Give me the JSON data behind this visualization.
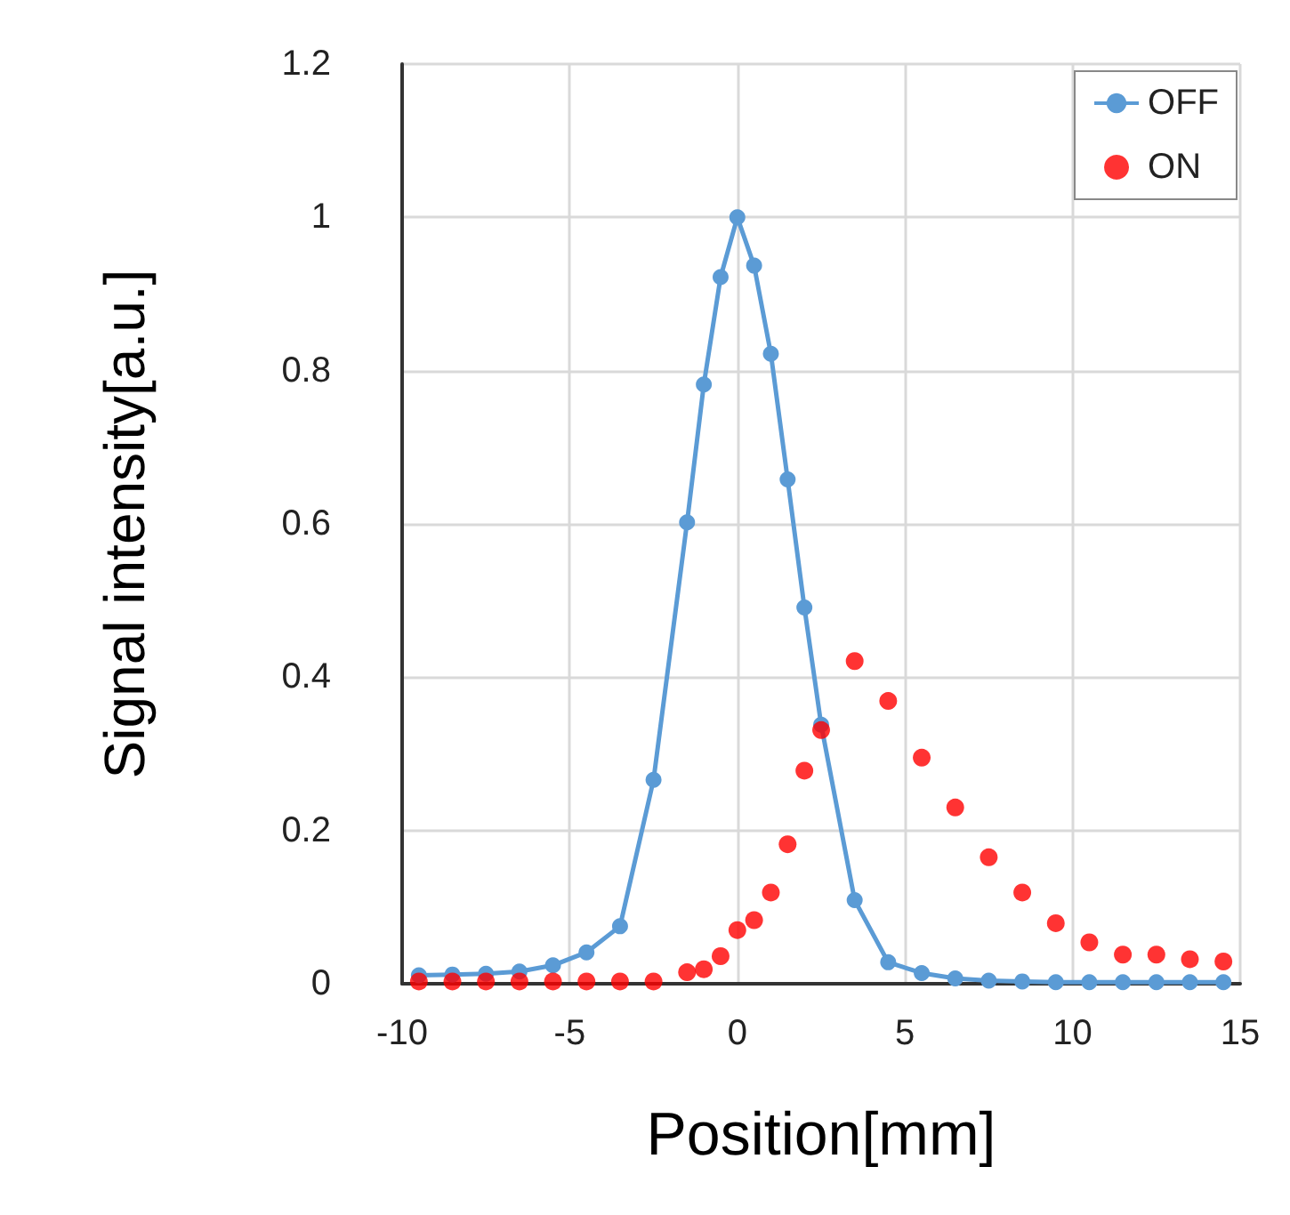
{
  "chart_data": {
    "type": "line",
    "xlabel": "Position[mm]",
    "ylabel": "Signal intensity[a.u.]",
    "x": [
      -9.5,
      -8.5,
      -7.5,
      -6.5,
      -5.5,
      -4.5,
      -3.5,
      -2.5,
      -1.5,
      -1,
      -0.5,
      0,
      0.5,
      1,
      1.5,
      2,
      2.5,
      3.5,
      4.5,
      5.5,
      6.5,
      7.5,
      8.5,
      9.5,
      10.5,
      11.5,
      12.5,
      13.5,
      14.5
    ],
    "series": [
      {
        "name": "OFF",
        "type": "line",
        "color": "#5b9bd5",
        "values": [
          0.011,
          0.012,
          0.013,
          0.016,
          0.024,
          0.041,
          0.075,
          0.266,
          0.602,
          0.782,
          0.922,
          1.0,
          0.937,
          0.822,
          0.658,
          0.491,
          0.338,
          0.109,
          0.028,
          0.014,
          0.007,
          0.004,
          0.003,
          0.002,
          0.002,
          0.002,
          0.002,
          0.002,
          0.002
        ]
      },
      {
        "name": "ON",
        "type": "scatter",
        "color": "#ff0000",
        "values": [
          0.003,
          0.003,
          0.003,
          0.003,
          0.003,
          0.003,
          0.003,
          0.003,
          0.015,
          0.019,
          0.036,
          0.07,
          0.083,
          0.119,
          0.182,
          0.278,
          0.331,
          0.421,
          0.369,
          0.295,
          0.23,
          0.165,
          0.119,
          0.079,
          0.054,
          0.038,
          0.038,
          0.032,
          0.029
        ]
      }
    ],
    "xlim": [
      -10,
      15
    ],
    "xticks": [
      -10,
      -5,
      0,
      5,
      10,
      15
    ],
    "ylim": [
      0,
      1.2
    ],
    "yticks": [
      0,
      0.2,
      0.4,
      0.6,
      0.8,
      1,
      1.2
    ],
    "grid": true,
    "legend": "top right",
    "marker": "circle",
    "line_style": "solid"
  }
}
